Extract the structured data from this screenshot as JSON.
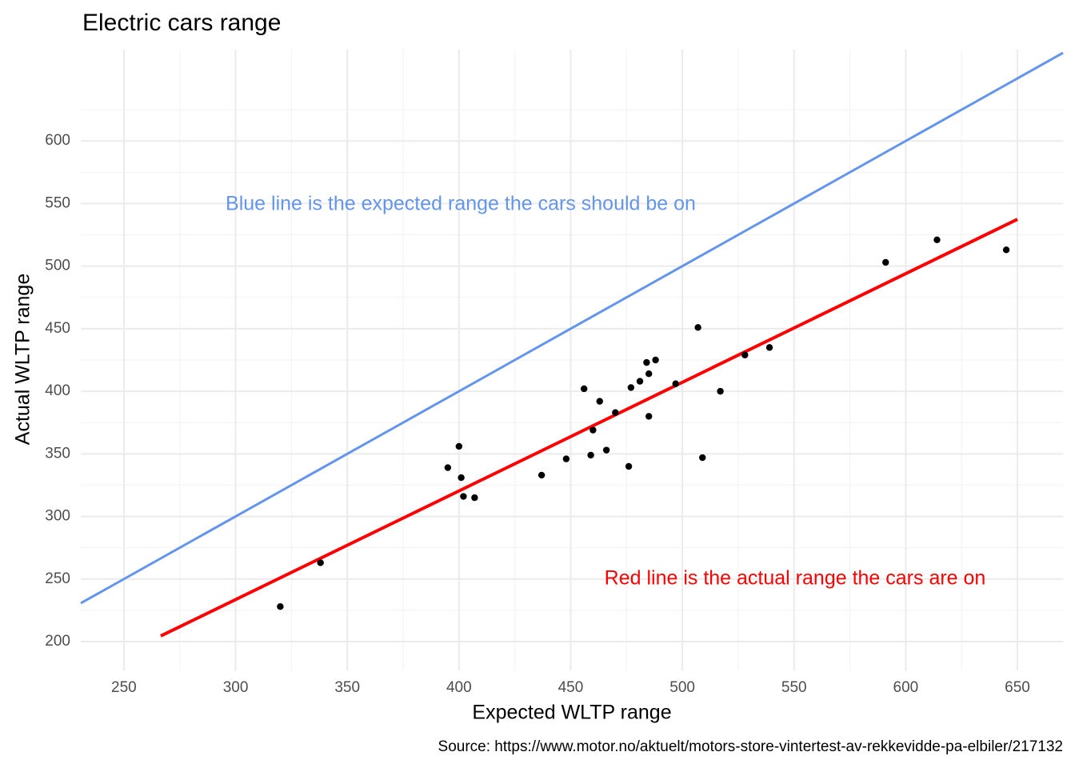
{
  "chart_data": {
    "type": "scatter",
    "title": "Electric cars range",
    "x_label": "Expected WLTP range",
    "y_label": "Actual WLTP range",
    "caption": "Source: https://www.motor.no/aktuelt/motors-store-vintertest-av-rekkevidde-pa-elbiler/217132",
    "annotations": [
      {
        "text": "Blue line is the expected range the cars should be on",
        "color": "#6495ED"
      },
      {
        "text": "Red line is the actual range the cars are on",
        "color": "#FF0000"
      }
    ],
    "xlim": [
      230.7,
      670.4
    ],
    "ylim": [
      177,
      673
    ],
    "xticks": [
      250,
      300,
      350,
      400,
      450,
      500,
      550,
      600,
      650
    ],
    "yticks": [
      200,
      250,
      300,
      350,
      400,
      450,
      500,
      550,
      600
    ],
    "x_minor_ticks": [
      275,
      325,
      375,
      425,
      475,
      525,
      575,
      625
    ],
    "y_minor_ticks": [
      225,
      275,
      325,
      375,
      425,
      475,
      525,
      575,
      625
    ],
    "grid": true,
    "series": [
      {
        "mode": "line",
        "color": "#6495ED",
        "x": [
          230.7,
          670.4
        ],
        "values": [
          230.7,
          670.4
        ]
      },
      {
        "mode": "line",
        "color": "#FF0000",
        "x": [
          266.5,
          650
        ],
        "values": [
          204.5,
          537.4
        ]
      },
      {
        "mode": "points",
        "color": "#000000",
        "x": [
          320,
          338,
          395,
          400,
          401,
          402,
          407,
          437,
          448,
          456,
          459,
          460,
          463,
          466,
          470,
          476,
          477,
          481,
          484,
          485,
          485,
          488,
          497,
          507,
          509,
          517,
          528,
          539,
          591,
          614,
          645
        ],
        "values": [
          228,
          263,
          339,
          356,
          331,
          316,
          315,
          333,
          346,
          402,
          349,
          369,
          392,
          353,
          383,
          340,
          403,
          408,
          423,
          414,
          380,
          425,
          406,
          451,
          347,
          400,
          429,
          435,
          503,
          521,
          513
        ]
      }
    ]
  }
}
